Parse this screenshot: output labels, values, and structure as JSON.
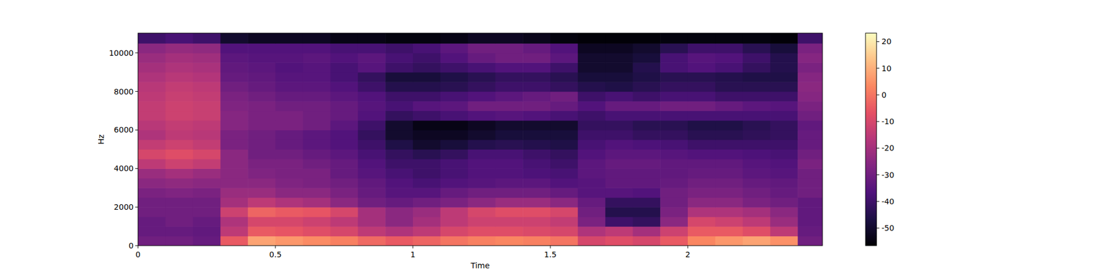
{
  "chart_data": {
    "type": "heatmap",
    "x_label": "Time",
    "y_label": "Hz",
    "color": "magma",
    "xlim": [
      0,
      2.49
    ],
    "ylim": [
      0,
      11025
    ],
    "xticks": [
      0,
      0.5,
      1,
      1.5,
      2
    ],
    "yticks": [
      0,
      2000,
      4000,
      6000,
      8000,
      10000
    ],
    "color_range": [
      -56.6,
      23.2
    ],
    "color_ticks": [
      -50,
      -40,
      -30,
      -20,
      -10,
      0,
      10,
      20
    ],
    "x_edges": [
      0,
      0.1,
      0.2,
      0.3,
      0.4,
      0.5,
      0.6,
      0.7,
      0.8,
      0.9,
      1.0,
      1.1,
      1.2,
      1.3,
      1.4,
      1.5,
      1.6,
      1.7,
      1.8,
      1.9,
      2.0,
      2.1,
      2.2,
      2.3,
      2.4,
      2.49
    ],
    "y_edges": [
      0,
      500,
      1000,
      1500,
      2000,
      2500,
      3000,
      3500,
      4000,
      4500,
      5000,
      5500,
      6000,
      6500,
      7000,
      7500,
      8000,
      8500,
      9000,
      9500,
      10000,
      10500,
      11025
    ],
    "values": [
      [
        -30,
        -30,
        -32,
        -5,
        8,
        6,
        4,
        2,
        -2,
        -5,
        -3,
        0,
        2,
        3,
        2,
        0,
        -10,
        -8,
        -10,
        -5,
        3,
        6,
        8,
        5,
        -30
      ],
      [
        -32,
        -32,
        -33,
        -15,
        -5,
        -6,
        -8,
        -10,
        -15,
        -18,
        -15,
        -10,
        -8,
        -8,
        -9,
        -10,
        -18,
        -15,
        -20,
        -12,
        -5,
        -5,
        -8,
        -15,
        -32
      ],
      [
        -32,
        -30,
        -32,
        -18,
        -10,
        -10,
        -12,
        -15,
        -20,
        -25,
        -20,
        -15,
        -12,
        -12,
        -12,
        -14,
        -28,
        -40,
        -42,
        -25,
        -10,
        -12,
        -15,
        -22,
        -33
      ],
      [
        -30,
        -30,
        -30,
        -12,
        -3,
        -5,
        -6,
        -10,
        -20,
        -25,
        -22,
        -15,
        -10,
        -8,
        -8,
        -10,
        -30,
        -45,
        -45,
        -28,
        -18,
        -18,
        -20,
        -25,
        -33
      ],
      [
        -30,
        -30,
        -30,
        -20,
        -15,
        -18,
        -20,
        -25,
        -30,
        -32,
        -30,
        -28,
        -25,
        -22,
        -22,
        -25,
        -32,
        -42,
        -42,
        -30,
        -25,
        -25,
        -28,
        -30,
        -33
      ],
      [
        -28,
        -27,
        -28,
        -22,
        -22,
        -25,
        -25,
        -28,
        -32,
        -35,
        -35,
        -32,
        -30,
        -30,
        -30,
        -32,
        -35,
        -35,
        -36,
        -30,
        -28,
        -28,
        -30,
        -32,
        -30
      ],
      [
        -25,
        -24,
        -25,
        -25,
        -25,
        -27,
        -28,
        -30,
        -33,
        -36,
        -38,
        -36,
        -35,
        -34,
        -34,
        -36,
        -35,
        -33,
        -33,
        -32,
        -30,
        -30,
        -32,
        -33,
        -30
      ],
      [
        -22,
        -20,
        -22,
        -25,
        -27,
        -28,
        -28,
        -32,
        -35,
        -38,
        -40,
        -38,
        -36,
        -36,
        -37,
        -38,
        -34,
        -33,
        -33,
        -33,
        -32,
        -32,
        -34,
        -35,
        -30
      ],
      [
        -15,
        -12,
        -14,
        -25,
        -28,
        -28,
        -30,
        -32,
        -36,
        -40,
        -40,
        -38,
        -36,
        -36,
        -38,
        -40,
        -34,
        -32,
        -32,
        -33,
        -33,
        -33,
        -35,
        -36,
        -28
      ],
      [
        -10,
        -8,
        -10,
        -25,
        -30,
        -30,
        -32,
        -34,
        -38,
        -42,
        -44,
        -42,
        -38,
        -38,
        -40,
        -42,
        -36,
        -34,
        -34,
        -35,
        -36,
        -36,
        -37,
        -38,
        -30
      ],
      [
        -14,
        -12,
        -14,
        -28,
        -30,
        -32,
        -34,
        -36,
        -40,
        -46,
        -50,
        -48,
        -45,
        -44,
        -45,
        -46,
        -38,
        -36,
        -37,
        -38,
        -40,
        -40,
        -40,
        -40,
        -32
      ],
      [
        -18,
        -15,
        -16,
        -28,
        -30,
        -32,
        -34,
        -36,
        -42,
        -50,
        -52,
        -52,
        -50,
        -48,
        -48,
        -48,
        -40,
        -40,
        -42,
        -42,
        -44,
        -44,
        -43,
        -42,
        -32
      ],
      [
        -16,
        -14,
        -15,
        -26,
        -28,
        -28,
        -30,
        -34,
        -40,
        -50,
        -54,
        -54,
        -52,
        -50,
        -50,
        -50,
        -42,
        -42,
        -44,
        -44,
        -46,
        -46,
        -44,
        -42,
        -33
      ],
      [
        -14,
        -12,
        -13,
        -26,
        -28,
        -28,
        -30,
        -32,
        -36,
        -42,
        -40,
        -38,
        -36,
        -35,
        -36,
        -38,
        -40,
        -38,
        -38,
        -38,
        -38,
        -38,
        -38,
        -38,
        -30
      ],
      [
        -14,
        -12,
        -13,
        -27,
        -28,
        -30,
        -30,
        -32,
        -35,
        -38,
        -35,
        -34,
        -30,
        -30,
        -30,
        -32,
        -36,
        -32,
        -32,
        -30,
        -30,
        -32,
        -34,
        -35,
        -28
      ],
      [
        -15,
        -13,
        -14,
        -28,
        -30,
        -32,
        -32,
        -34,
        -36,
        -40,
        -40,
        -38,
        -36,
        -34,
        -32,
        -30,
        -40,
        -38,
        -40,
        -38,
        -38,
        -40,
        -40,
        -40,
        -26
      ],
      [
        -16,
        -14,
        -15,
        -30,
        -32,
        -34,
        -34,
        -36,
        -40,
        -45,
        -45,
        -44,
        -42,
        -40,
        -40,
        -42,
        -45,
        -46,
        -44,
        -42,
        -42,
        -44,
        -44,
        -44,
        -25
      ],
      [
        -18,
        -16,
        -17,
        -32,
        -33,
        -35,
        -35,
        -38,
        -42,
        -48,
        -48,
        -46,
        -44,
        -42,
        -42,
        -44,
        -48,
        -48,
        -46,
        -44,
        -44,
        -45,
        -46,
        -46,
        -26
      ],
      [
        -20,
        -18,
        -19,
        -33,
        -34,
        -36,
        -35,
        -38,
        -35,
        -40,
        -42,
        -40,
        -38,
        -36,
        -36,
        -40,
        -50,
        -50,
        -45,
        -38,
        -36,
        -38,
        -42,
        -45,
        -28
      ],
      [
        -22,
        -20,
        -21,
        -34,
        -35,
        -35,
        -34,
        -36,
        -34,
        -38,
        -40,
        -36,
        -32,
        -30,
        -30,
        -34,
        -50,
        -50,
        -48,
        -38,
        -35,
        -36,
        -40,
        -45,
        -26
      ],
      [
        -25,
        -23,
        -24,
        -36,
        -36,
        -36,
        -36,
        -38,
        -38,
        -40,
        -38,
        -34,
        -30,
        -30,
        -32,
        -36,
        -52,
        -52,
        -50,
        -44,
        -40,
        -40,
        -44,
        -48,
        -28
      ],
      [
        -40,
        -38,
        -40,
        -50,
        -52,
        -52,
        -52,
        -54,
        -54,
        -55,
        -55,
        -54,
        -52,
        -52,
        -53,
        -55,
        -56,
        -56,
        -56,
        -55,
        -55,
        -55,
        -55,
        -56,
        -40
      ]
    ]
  }
}
